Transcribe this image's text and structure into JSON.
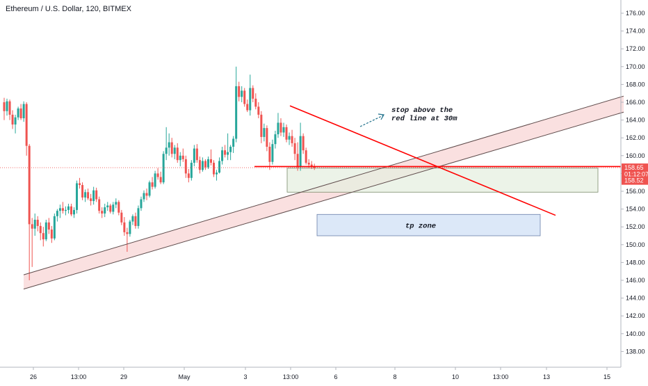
{
  "chart_data": {
    "type": "candlestick",
    "title": "Ethereum / U.S. Dollar, 120, BITMEX",
    "colors": {
      "up": "#26a69a",
      "down": "#ef5350",
      "trend_red": "#ff0000",
      "channel_fill": "#f5c6c6",
      "tp_fill": "#dce8f8",
      "tp_stroke": "#6a7fa8",
      "sl_fill": "#e6efe0"
    },
    "ylim": [
      137,
      177
    ],
    "y_ticks": [
      "176.00",
      "174.00",
      "172.00",
      "170.00",
      "168.00",
      "166.00",
      "164.00",
      "162.00",
      "160.00",
      "158.00",
      "156.00",
      "154.00",
      "152.00",
      "150.00",
      "148.00",
      "146.00",
      "144.00",
      "142.00",
      "140.00",
      "138.00"
    ],
    "x_ticks": [
      "26",
      "13:00",
      "29",
      "May",
      "3",
      "13:00",
      "6",
      "8",
      "10",
      "13:00",
      "13",
      "15"
    ],
    "price_tags": [
      {
        "label": "158.65",
        "value": 158.65,
        "color": "#ef5350"
      },
      {
        "label": "01:12:07",
        "value": 157.9,
        "color": "#ef5350",
        "countdown": true
      },
      {
        "label": "158.52",
        "value": 157.2,
        "color": "#ef5350"
      }
    ],
    "last_price": 158.65,
    "annotations": [
      {
        "id": "stop-note",
        "lines": [
          "stop above the",
          "red line at 30m"
        ]
      },
      {
        "id": "tp-zone",
        "label": "tp zone",
        "price_top": 153.4,
        "price_bottom": 151.0
      }
    ],
    "candles": [
      [
        166.0,
        166.5,
        164.0,
        165.0
      ],
      [
        165.0,
        166.4,
        164.5,
        166.1
      ],
      [
        166.1,
        166.3,
        164.0,
        164.6
      ],
      [
        164.6,
        165.1,
        163.0,
        163.5
      ],
      [
        163.5,
        164.6,
        162.5,
        164.3
      ],
      [
        164.3,
        165.5,
        164.0,
        165.3
      ],
      [
        165.3,
        165.8,
        164.0,
        164.2
      ],
      [
        164.2,
        166.1,
        163.8,
        165.8
      ],
      [
        165.8,
        166.0,
        160.0,
        161.1
      ],
      [
        161.1,
        161.3,
        146.0,
        152.3
      ],
      [
        152.3,
        153.0,
        147.5,
        151.8
      ],
      [
        151.8,
        153.5,
        151.0,
        152.8
      ],
      [
        152.8,
        153.2,
        151.5,
        152.1
      ],
      [
        152.1,
        152.5,
        150.5,
        151.3
      ],
      [
        151.3,
        152.0,
        149.8,
        150.6
      ],
      [
        150.6,
        152.8,
        150.4,
        152.5
      ],
      [
        152.5,
        153.0,
        151.2,
        151.7
      ],
      [
        151.7,
        152.1,
        150.2,
        150.7
      ],
      [
        150.7,
        153.5,
        150.5,
        153.2
      ],
      [
        153.2,
        154.0,
        152.6,
        153.8
      ],
      [
        153.8,
        154.5,
        153.0,
        154.1
      ],
      [
        154.1,
        154.8,
        153.5,
        153.8
      ],
      [
        153.8,
        154.3,
        153.3,
        153.9
      ],
      [
        153.9,
        154.6,
        153.5,
        154.3
      ],
      [
        154.3,
        154.6,
        153.2,
        153.4
      ],
      [
        153.4,
        154.2,
        153.0,
        153.9
      ],
      [
        153.9,
        157.2,
        153.5,
        156.9
      ],
      [
        156.9,
        157.5,
        156.3,
        156.7
      ],
      [
        156.7,
        157.0,
        155.0,
        155.3
      ],
      [
        155.3,
        156.2,
        154.8,
        155.9
      ],
      [
        155.9,
        156.3,
        155.0,
        155.2
      ],
      [
        155.2,
        155.7,
        154.4,
        154.9
      ],
      [
        154.9,
        156.5,
        154.5,
        156.1
      ],
      [
        156.1,
        156.4,
        154.8,
        155.1
      ],
      [
        155.1,
        155.4,
        153.5,
        153.8
      ],
      [
        153.8,
        154.2,
        153.0,
        153.5
      ],
      [
        153.5,
        154.6,
        153.1,
        154.2
      ],
      [
        154.2,
        154.8,
        153.8,
        154.4
      ],
      [
        154.4,
        154.6,
        153.5,
        153.7
      ],
      [
        153.7,
        154.8,
        153.4,
        154.5
      ],
      [
        154.5,
        155.2,
        154.1,
        154.8
      ],
      [
        154.8,
        155.0,
        153.3,
        153.6
      ],
      [
        153.6,
        153.9,
        152.2,
        152.5
      ],
      [
        152.5,
        153.1,
        151.0,
        151.4
      ],
      [
        151.4,
        151.9,
        149.2,
        151.2
      ],
      [
        151.2,
        152.8,
        150.9,
        152.6
      ],
      [
        152.6,
        153.4,
        152.2,
        153.2
      ],
      [
        153.2,
        153.6,
        151.8,
        152.1
      ],
      [
        152.1,
        154.4,
        151.8,
        154.1
      ],
      [
        154.1,
        155.4,
        153.8,
        155.1
      ],
      [
        155.1,
        156.1,
        154.8,
        155.8
      ],
      [
        155.8,
        156.3,
        155.0,
        155.5
      ],
      [
        155.5,
        157.2,
        155.3,
        157.0
      ],
      [
        157.0,
        157.6,
        156.2,
        156.5
      ],
      [
        156.5,
        158.3,
        156.3,
        158.0
      ],
      [
        158.0,
        158.6,
        157.3,
        157.6
      ],
      [
        157.6,
        158.2,
        156.8,
        157.0
      ],
      [
        157.0,
        160.5,
        156.8,
        160.2
      ],
      [
        160.2,
        163.2,
        159.5,
        160.9
      ],
      [
        160.9,
        162.5,
        160.0,
        161.5
      ],
      [
        161.5,
        162.0,
        159.8,
        160.2
      ],
      [
        160.2,
        161.2,
        159.6,
        160.9
      ],
      [
        160.9,
        161.4,
        159.2,
        159.5
      ],
      [
        159.5,
        160.4,
        158.8,
        160.0
      ],
      [
        160.0,
        160.8,
        159.3,
        159.6
      ],
      [
        159.6,
        160.0,
        157.5,
        158.0
      ],
      [
        158.0,
        158.5,
        157.0,
        157.5
      ],
      [
        157.5,
        159.5,
        157.2,
        159.2
      ],
      [
        159.2,
        161.2,
        158.8,
        160.8
      ],
      [
        160.8,
        161.3,
        159.2,
        159.5
      ],
      [
        159.5,
        159.9,
        158.0,
        158.4
      ],
      [
        158.4,
        159.8,
        158.2,
        159.4
      ],
      [
        159.4,
        159.6,
        158.4,
        158.7
      ],
      [
        158.7,
        159.9,
        158.5,
        159.6
      ],
      [
        159.6,
        160.7,
        158.9,
        159.2
      ],
      [
        159.2,
        159.5,
        157.6,
        157.9
      ],
      [
        157.9,
        158.4,
        157.2,
        158.1
      ],
      [
        158.1,
        159.8,
        158.0,
        159.4
      ],
      [
        159.4,
        161.0,
        159.0,
        160.6
      ],
      [
        160.6,
        161.2,
        159.8,
        160.1
      ],
      [
        160.1,
        162.5,
        159.5,
        160.4
      ],
      [
        160.4,
        161.2,
        159.5,
        161.0
      ],
      [
        161.0,
        162.2,
        160.3,
        161.9
      ],
      [
        161.9,
        170.0,
        161.5,
        167.8
      ],
      [
        167.8,
        168.3,
        166.1,
        166.6
      ],
      [
        166.6,
        167.8,
        166.0,
        167.3
      ],
      [
        167.3,
        167.6,
        165.5,
        165.8
      ],
      [
        165.8,
        166.3,
        164.9,
        165.1
      ],
      [
        165.1,
        169.1,
        164.5,
        167.6
      ],
      [
        167.6,
        167.9,
        166.0,
        166.4
      ],
      [
        166.4,
        167.0,
        165.2,
        165.5
      ],
      [
        165.5,
        166.0,
        164.2,
        164.6
      ],
      [
        164.6,
        165.0,
        161.4,
        162.1
      ],
      [
        162.1,
        163.6,
        161.6,
        163.1
      ],
      [
        163.1,
        163.4,
        160.5,
        161.0
      ],
      [
        161.0,
        161.5,
        158.4,
        159.3
      ],
      [
        159.3,
        161.8,
        159.0,
        161.3
      ],
      [
        161.3,
        162.8,
        160.8,
        162.4
      ],
      [
        162.4,
        164.8,
        162.0,
        163.7
      ],
      [
        163.7,
        164.2,
        162.2,
        162.6
      ],
      [
        162.6,
        163.7,
        162.1,
        163.2
      ],
      [
        163.2,
        163.5,
        161.5,
        161.8
      ],
      [
        161.8,
        162.6,
        161.2,
        162.2
      ],
      [
        162.2,
        162.9,
        161.0,
        161.4
      ],
      [
        161.4,
        162.0,
        159.5,
        160.2
      ],
      [
        160.2,
        161.5,
        158.3,
        158.7
      ],
      [
        158.7,
        163.7,
        158.3,
        162.2
      ],
      [
        162.2,
        162.5,
        160.2,
        160.6
      ],
      [
        160.6,
        160.9,
        159.0,
        159.2
      ],
      [
        159.2,
        159.6,
        158.6,
        159.0
      ],
      [
        159.0,
        159.4,
        158.5,
        158.8
      ],
      [
        158.8,
        159.1,
        158.4,
        158.65
      ]
    ],
    "series": [
      {
        "name": "",
        "kind": "channel_lower",
        "from": [
          2,
          145.2
        ],
        "to": [
          123,
          164.9
        ]
      },
      {
        "name": "",
        "kind": "channel_upper",
        "from": [
          2,
          146.8
        ],
        "to": [
          123,
          166.7
        ]
      },
      {
        "name": "",
        "kind": "red_trend",
        "from": [
          97,
          165.6
        ],
        "to": [
          127,
          153.3
        ]
      },
      {
        "name": "",
        "kind": "support",
        "from": [
          90,
          158.8
        ],
        "to": [
          123,
          158.8
        ]
      }
    ]
  }
}
